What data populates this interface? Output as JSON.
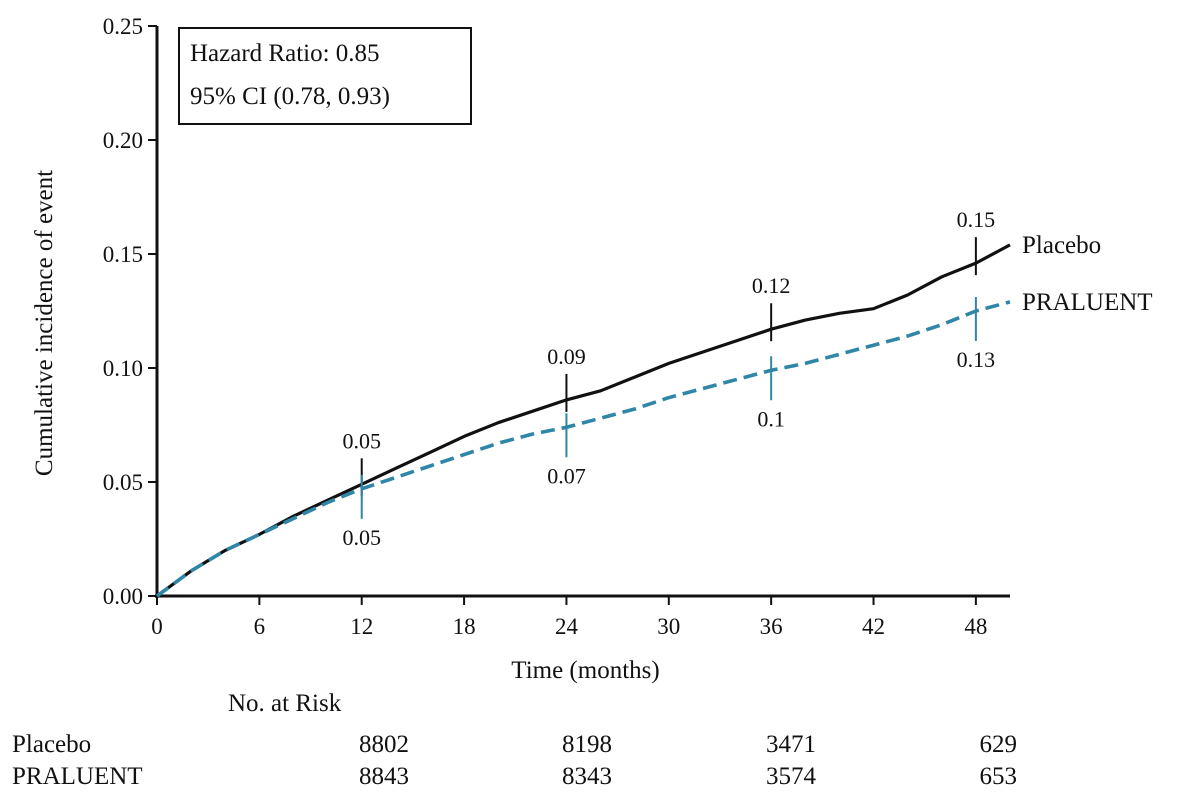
{
  "chart_data": {
    "type": "line",
    "xlabel": "Time (months)",
    "ylabel": "Cumulative incidence of event",
    "xlim": [
      0,
      50
    ],
    "ylim": [
      0,
      0.25
    ],
    "x_ticks": [
      "0",
      "6",
      "12",
      "18",
      "24",
      "30",
      "36",
      "42",
      "48"
    ],
    "y_ticks": [
      "0.00",
      "0.05",
      "0.10",
      "0.15",
      "0.20",
      "0.25"
    ],
    "annotation": [
      "Hazard Ratio: 0.85",
      "95% CI (0.78, 0.93)"
    ],
    "colors": {
      "Placebo": "#111111",
      "PRALUENT": "#2f86a6"
    },
    "series": [
      {
        "name": "Placebo",
        "line_style": "solid",
        "x": [
          0,
          2,
          4,
          6,
          8,
          10,
          12,
          14,
          16,
          18,
          20,
          22,
          24,
          26,
          28,
          30,
          32,
          34,
          36,
          38,
          40,
          42,
          44,
          46,
          48,
          50
        ],
        "y": [
          0.0,
          0.011,
          0.02,
          0.027,
          0.035,
          0.042,
          0.049,
          0.056,
          0.063,
          0.07,
          0.076,
          0.081,
          0.086,
          0.09,
          0.096,
          0.102,
          0.107,
          0.112,
          0.117,
          0.121,
          0.124,
          0.126,
          0.132,
          0.14,
          0.146,
          0.154
        ],
        "marks": [
          {
            "x": 12,
            "label": "0.05"
          },
          {
            "x": 24,
            "label": "0.09"
          },
          {
            "x": 36,
            "label": "0.12"
          },
          {
            "x": 48,
            "label": "0.15"
          }
        ]
      },
      {
        "name": "PRALUENT",
        "line_style": "dashed",
        "x": [
          0,
          2,
          4,
          6,
          8,
          10,
          12,
          14,
          16,
          18,
          20,
          22,
          24,
          26,
          28,
          30,
          32,
          34,
          36,
          38,
          40,
          42,
          44,
          46,
          48,
          50
        ],
        "y": [
          0.0,
          0.011,
          0.02,
          0.027,
          0.034,
          0.041,
          0.047,
          0.052,
          0.057,
          0.062,
          0.067,
          0.071,
          0.074,
          0.078,
          0.082,
          0.087,
          0.091,
          0.095,
          0.099,
          0.102,
          0.106,
          0.11,
          0.114,
          0.119,
          0.125,
          0.129
        ],
        "marks": [
          {
            "x": 12,
            "label": "0.05"
          },
          {
            "x": 24,
            "label": "0.07"
          },
          {
            "x": 36,
            "label": "0.1"
          },
          {
            "x": 48,
            "label": "0.13"
          }
        ]
      }
    ]
  },
  "risk_table": {
    "title": "No. at Risk",
    "rows": [
      {
        "label": "Placebo",
        "values": [
          "8802",
          "8198",
          "3471",
          "629"
        ]
      },
      {
        "label": "PRALUENT",
        "values": [
          "8843",
          "8343",
          "3574",
          "653"
        ]
      }
    ]
  }
}
